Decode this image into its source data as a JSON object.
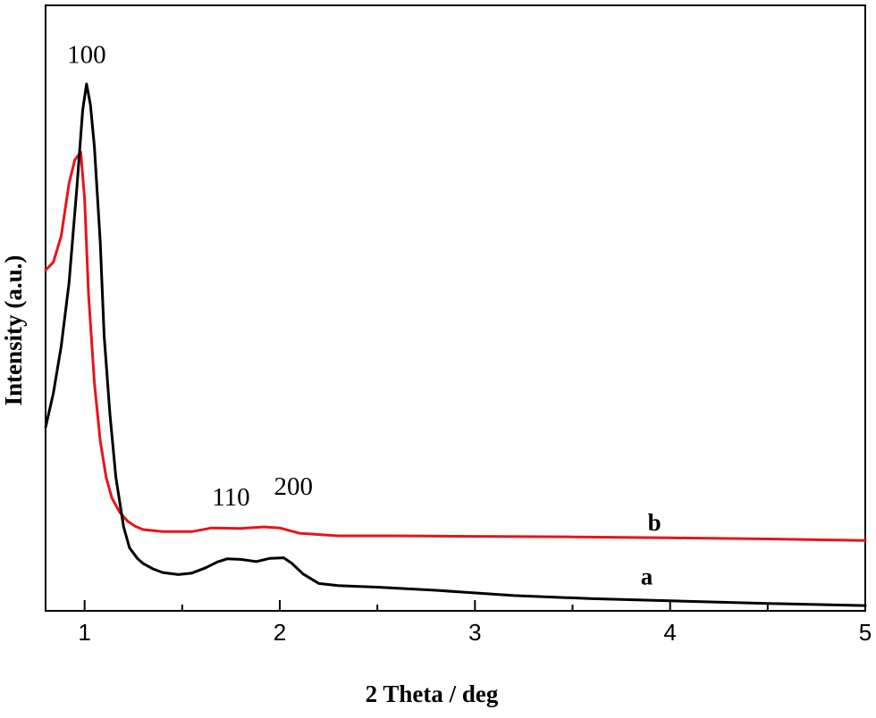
{
  "chart_data": {
    "type": "line",
    "title": "",
    "xlabel": "2 Theta / deg",
    "ylabel": "Intensity (a.u.)",
    "xlim": [
      0.8,
      5
    ],
    "ylim": [
      0,
      100
    ],
    "x_ticks": [
      1,
      2,
      3,
      4,
      5
    ],
    "x_tick_labels": [
      "1",
      "2",
      "3",
      "4",
      "5"
    ],
    "y_ticks_shown": false,
    "grid": false,
    "legend": "none",
    "annotations": [
      {
        "text": "100",
        "x": 1.01,
        "y": 104
      },
      {
        "text": "110",
        "x": 1.75,
        "y": 19.6
      },
      {
        "text": "200",
        "x": 2.07,
        "y": 21.6
      }
    ],
    "series": [
      {
        "name": "a",
        "color": "#000000",
        "label_at": {
          "x": 3.88,
          "y": 4.5
        },
        "x": [
          0.8,
          0.84,
          0.88,
          0.92,
          0.96,
          0.99,
          1.01,
          1.03,
          1.05,
          1.08,
          1.1,
          1.13,
          1.16,
          1.2,
          1.23,
          1.27,
          1.3,
          1.35,
          1.4,
          1.48,
          1.55,
          1.62,
          1.68,
          1.73,
          1.8,
          1.88,
          1.95,
          2.02,
          2.06,
          2.12,
          2.2,
          2.3,
          2.5,
          2.8,
          3.2,
          3.6,
          4.0,
          4.5,
          5.0
        ],
        "y": [
          34.5,
          41,
          50,
          62,
          80,
          95,
          100,
          96,
          88,
          70,
          52,
          37,
          25,
          15.5,
          11.5,
          9.5,
          8.5,
          7.5,
          6.8,
          6.4,
          6.7,
          7.7,
          8.8,
          9.4,
          9.3,
          8.9,
          9.5,
          9.6,
          8.6,
          6.5,
          4.7,
          4.3,
          4.0,
          3.4,
          2.4,
          1.8,
          1.4,
          0.9,
          0.5
        ]
      },
      {
        "name": "b",
        "color": "#e8141b",
        "label_at": {
          "x": 3.92,
          "y": 14.8
        },
        "x": [
          0.8,
          0.84,
          0.88,
          0.92,
          0.95,
          0.98,
          1.0,
          1.02,
          1.05,
          1.08,
          1.11,
          1.14,
          1.18,
          1.22,
          1.26,
          1.3,
          1.4,
          1.55,
          1.65,
          1.8,
          1.92,
          2.0,
          2.1,
          2.3,
          2.6,
          3.0,
          3.5,
          4.0,
          4.5,
          5.0
        ],
        "y": [
          64.5,
          66,
          71,
          81,
          85.5,
          87,
          78,
          60,
          43,
          32,
          25,
          21,
          18.3,
          16.6,
          15.6,
          15.0,
          14.6,
          14.6,
          15.3,
          15.2,
          15.5,
          15.3,
          14.3,
          13.8,
          13.8,
          13.7,
          13.6,
          13.4,
          13.2,
          12.9
        ]
      }
    ]
  }
}
